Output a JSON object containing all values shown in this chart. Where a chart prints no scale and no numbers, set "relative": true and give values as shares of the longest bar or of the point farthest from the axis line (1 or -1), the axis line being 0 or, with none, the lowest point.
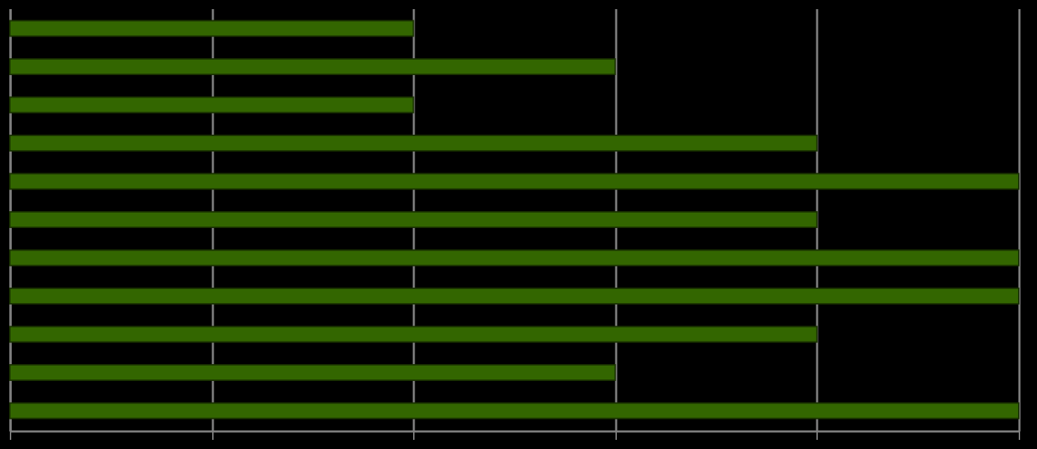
{
  "chart_data": {
    "type": "bar",
    "orientation": "horizontal",
    "relative": true,
    "categories": [
      null,
      null,
      null,
      null,
      null,
      null,
      null,
      null,
      null,
      null,
      null
    ],
    "values": [
      0.4,
      0.6,
      0.4,
      0.8,
      1,
      0.8,
      1,
      1,
      0.8,
      0.6,
      1
    ],
    "color": "#336600",
    "grid": "x",
    "tick_labels": false
  }
}
